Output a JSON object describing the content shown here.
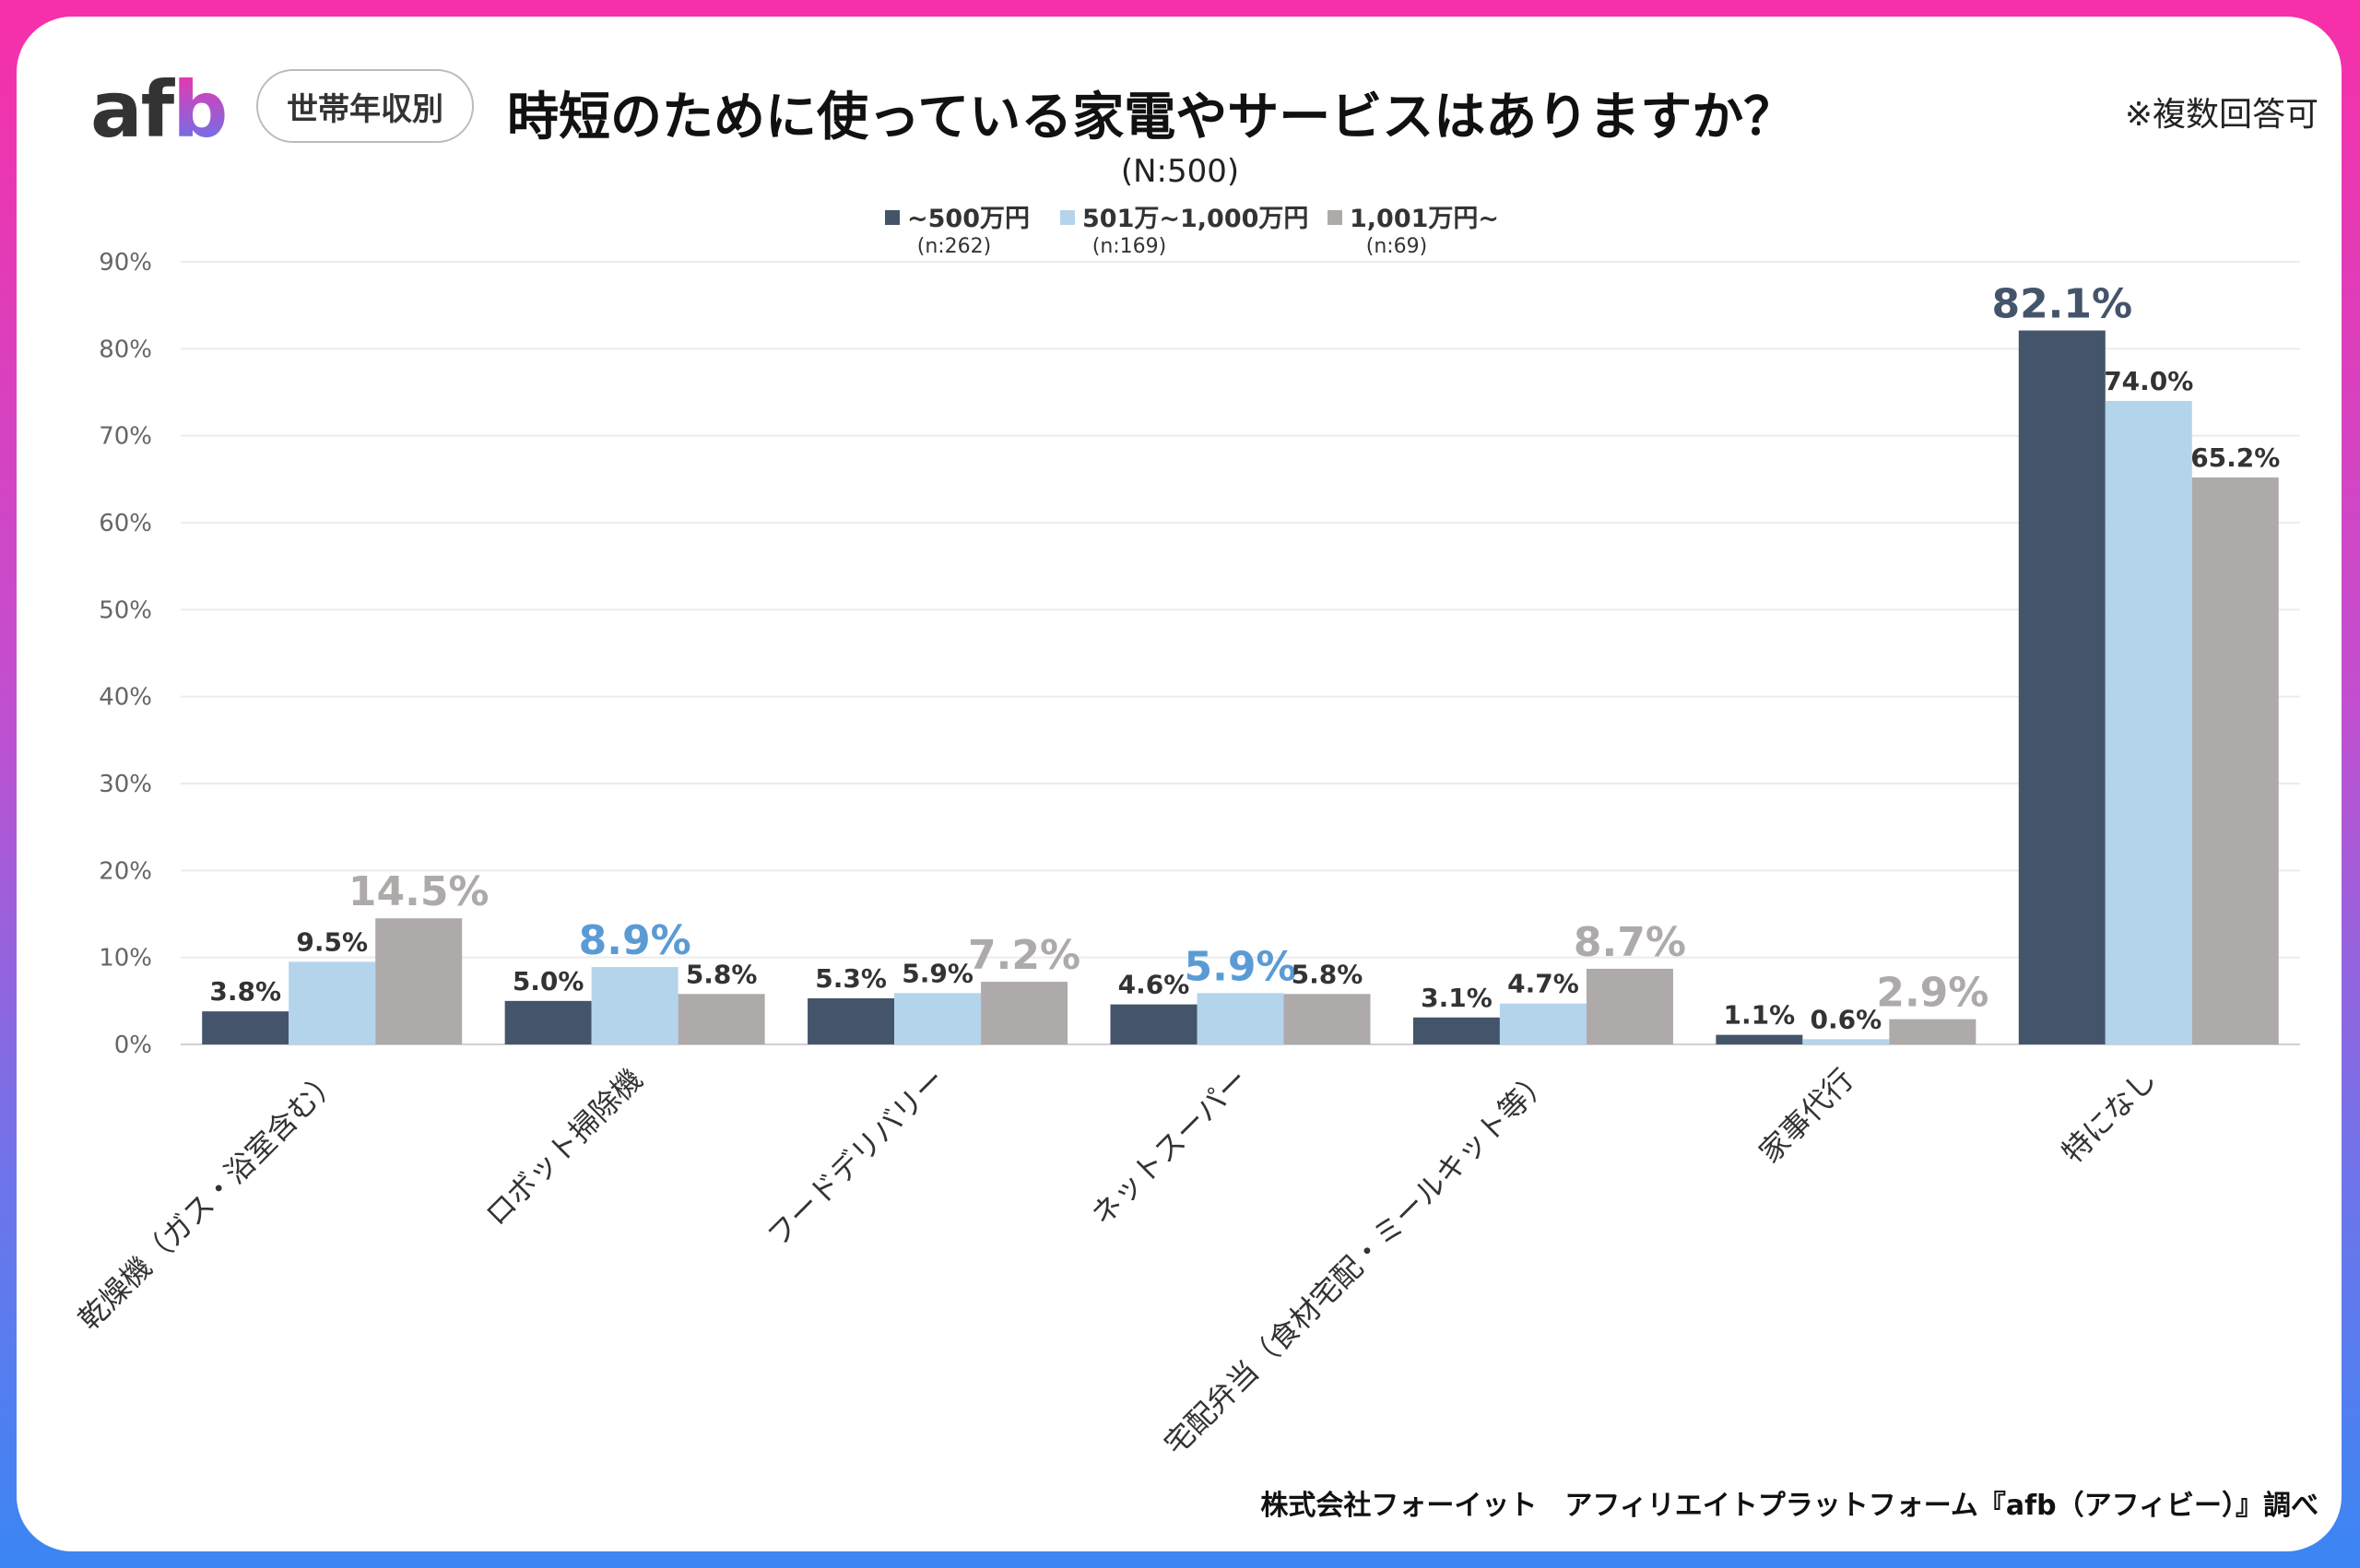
{
  "header": {
    "logo": "afb",
    "badge": "世帯年収別",
    "title": "時短のために使っている家電やサービスはありますか？",
    "note": "※複数回答可"
  },
  "footer": "株式会社フォーイット　アフィリエイトプラットフォーム『afb（アフィビー）』調べ",
  "chart_data": {
    "type": "bar",
    "subtitle": "(N:500)",
    "categories": [
      "乾燥機（ガス・浴室含む）",
      "ロボット掃除機",
      "フードデリバリー",
      "ネットスーパー",
      "宅配弁当（食材宅配・ミールキット等）",
      "家事代行",
      "特になし"
    ],
    "series": [
      {
        "name": "~500万円",
        "n": "(n:262)",
        "color": "#44546a",
        "label_highlight_color": "#44546a",
        "values": [
          3.8,
          5.0,
          5.3,
          4.6,
          3.1,
          1.1,
          82.1
        ]
      },
      {
        "name": "501万~1,000万円",
        "n": "(n:169)",
        "color": "#b4d4ec",
        "label_highlight_color": "#5b9bd5",
        "values": [
          9.5,
          8.9,
          5.9,
          5.9,
          4.7,
          0.6,
          74.0
        ]
      },
      {
        "name": "1,001万円~",
        "n": "(n:69)",
        "color": "#aeaaaa",
        "label_highlight_color": "#aeaaaa",
        "values": [
          14.5,
          5.8,
          7.2,
          5.8,
          8.7,
          2.9,
          65.2
        ]
      }
    ],
    "highlighted": [
      [
        0,
        2
      ],
      [
        1,
        1
      ],
      [
        2,
        2
      ],
      [
        3,
        1
      ],
      [
        4,
        2
      ],
      [
        5,
        2
      ],
      [
        6,
        0
      ]
    ],
    "ylim": [
      0,
      90
    ],
    "yticks": [
      "0%",
      "10%",
      "20%",
      "30%",
      "40%",
      "50%",
      "60%",
      "70%",
      "80%",
      "90%"
    ],
    "value_format": "percent, 1 decimal",
    "grid": true,
    "legend_position": "top"
  }
}
